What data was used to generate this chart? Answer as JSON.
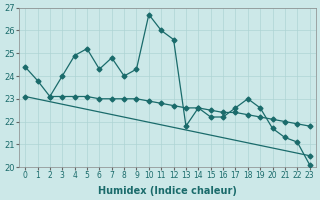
{
  "title": "",
  "xlabel": "Humidex (Indice chaleur)",
  "ylabel": "",
  "bg_color": "#cce8e8",
  "line_color": "#1a6b6b",
  "xlim": [
    -0.5,
    23.5
  ],
  "ylim": [
    20,
    27
  ],
  "yticks": [
    20,
    21,
    22,
    23,
    24,
    25,
    26,
    27
  ],
  "xticks": [
    0,
    1,
    2,
    3,
    4,
    5,
    6,
    7,
    8,
    9,
    10,
    11,
    12,
    13,
    14,
    15,
    16,
    17,
    18,
    19,
    20,
    21,
    22,
    23
  ],
  "series1_x": [
    0,
    1,
    2,
    3,
    4,
    5,
    6,
    7,
    8,
    9,
    10,
    11,
    12,
    13,
    14,
    15,
    16,
    17,
    18,
    19,
    20,
    21,
    22,
    23
  ],
  "series1_y": [
    24.4,
    23.8,
    23.1,
    24.0,
    24.9,
    25.2,
    24.3,
    24.8,
    24.0,
    24.3,
    26.7,
    26.0,
    25.6,
    21.8,
    22.6,
    22.2,
    22.2,
    22.6,
    23.0,
    22.6,
    21.7,
    21.3,
    21.1,
    20.1
  ],
  "series2_x": [
    2,
    3,
    4,
    5,
    6,
    7,
    8,
    9,
    10,
    11,
    12,
    13,
    14,
    15,
    16,
    17,
    18,
    19,
    20,
    21,
    22,
    23
  ],
  "series2_y": [
    23.1,
    23.1,
    23.1,
    23.1,
    23.0,
    23.0,
    23.0,
    23.0,
    22.9,
    22.8,
    22.7,
    22.6,
    22.6,
    22.5,
    22.4,
    22.4,
    22.3,
    22.2,
    22.1,
    22.0,
    21.9,
    21.8
  ],
  "series3_x": [
    0,
    23
  ],
  "series3_y": [
    23.1,
    20.5
  ],
  "grid_color": "#aed4d4",
  "grid_lw": 0.5,
  "line_lw": 0.9,
  "marker_size": 2.5
}
